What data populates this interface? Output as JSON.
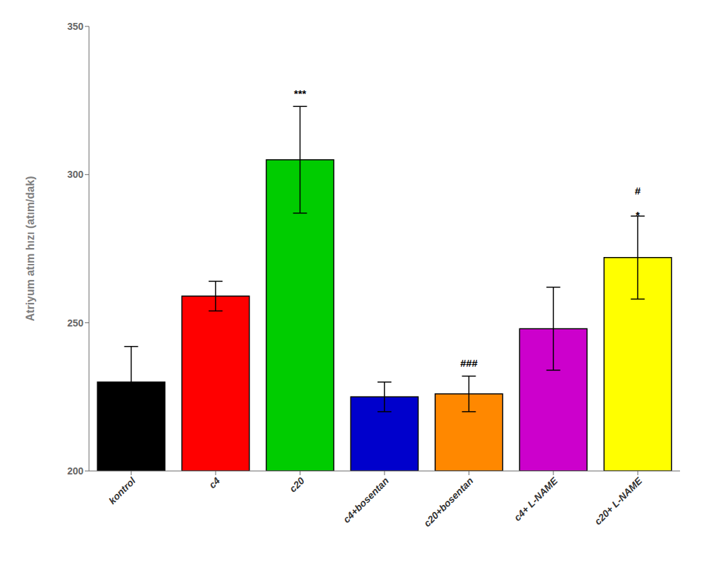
{
  "chart_data": {
    "type": "bar",
    "categories": [
      "kontrol",
      "c4",
      "c20",
      "c4+bosentan",
      "c20+bosentan",
      "c4+ L-NAME",
      "c20+ L-NAME"
    ],
    "values": [
      230,
      259,
      305,
      225,
      226,
      248,
      272
    ],
    "errors": [
      12,
      5,
      18,
      5,
      6,
      14,
      14
    ],
    "colors": [
      "#000000",
      "#ff0000",
      "#00cc00",
      "#0000cc",
      "#ff8800",
      "#cc00cc",
      "#ffff00"
    ],
    "ylabel": "Atriyum atım hızı (atım/dak)",
    "ylim": [
      200,
      350
    ],
    "yticks": [
      200,
      250,
      300,
      350
    ],
    "grid": false,
    "annotations": [
      {
        "category": "c20",
        "text": "***",
        "y": 325
      },
      {
        "category": "c20+bosentan",
        "text": "###",
        "y": 234
      },
      {
        "category": "c20+ L-NAME",
        "text": "#",
        "y": 292
      },
      {
        "category": "c20+ L-NAME",
        "text": "*",
        "y": 284
      }
    ]
  }
}
